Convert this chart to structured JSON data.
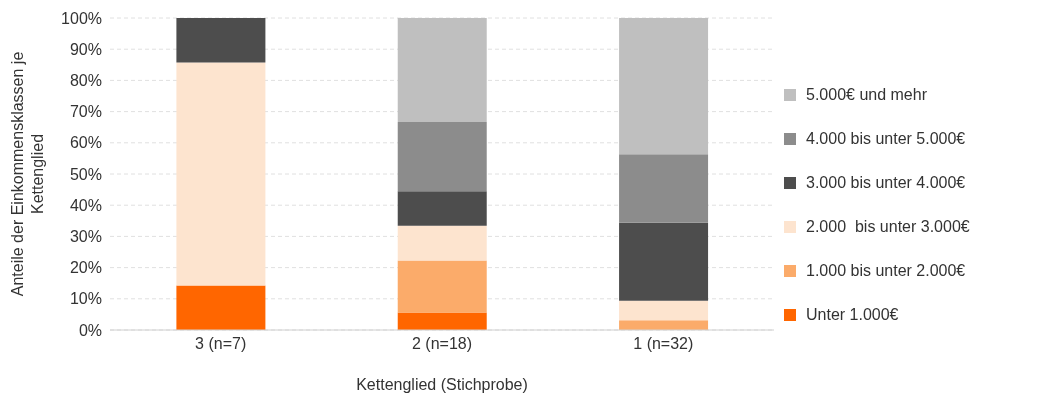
{
  "chart_data": {
    "type": "bar",
    "stacked": true,
    "xlabel": "Kettenglied (Stichprobe)",
    "ylabel": "Anteile der Einkommensklassen je Kettenglied",
    "categories": [
      "3 (n=7)",
      "2 (n=18)",
      "1 (n=32)"
    ],
    "series": [
      {
        "name": "Unter 1.000€",
        "color": "#ff6600",
        "values": [
          14.3,
          5.6,
          0
        ]
      },
      {
        "name": "1.000 bis unter 2.000€",
        "color": "#fbab6a",
        "values": [
          0,
          16.7,
          3.1
        ]
      },
      {
        "name": "2.000  bis unter 3.000€",
        "color": "#fde4cf",
        "values": [
          71.4,
          11.1,
          6.3
        ]
      },
      {
        "name": "3.000 bis unter 4.000€",
        "color": "#4d4d4d",
        "values": [
          14.3,
          11.1,
          25
        ]
      },
      {
        "name": "4.000 bis unter 5.000€",
        "color": "#8c8c8c",
        "values": [
          0,
          22.2,
          21.9
        ]
      },
      {
        "name": "5.000€ und mehr",
        "color": "#bfbfbf",
        "values": [
          0,
          33.3,
          43.8
        ]
      }
    ],
    "ylim": [
      0,
      100
    ],
    "yticks": [
      {
        "value": 0,
        "label": "0%"
      },
      {
        "value": 10,
        "label": "10%"
      },
      {
        "value": 20,
        "label": "20%"
      },
      {
        "value": 30,
        "label": "30%"
      },
      {
        "value": 40,
        "label": "40%"
      },
      {
        "value": 50,
        "label": "50%"
      },
      {
        "value": 60,
        "label": "60%"
      },
      {
        "value": 70,
        "label": "70%"
      },
      {
        "value": 80,
        "label": "80%"
      },
      {
        "value": 90,
        "label": "90%"
      },
      {
        "value": 100,
        "label": "100%"
      }
    ],
    "grid": "y",
    "legend": "right"
  }
}
